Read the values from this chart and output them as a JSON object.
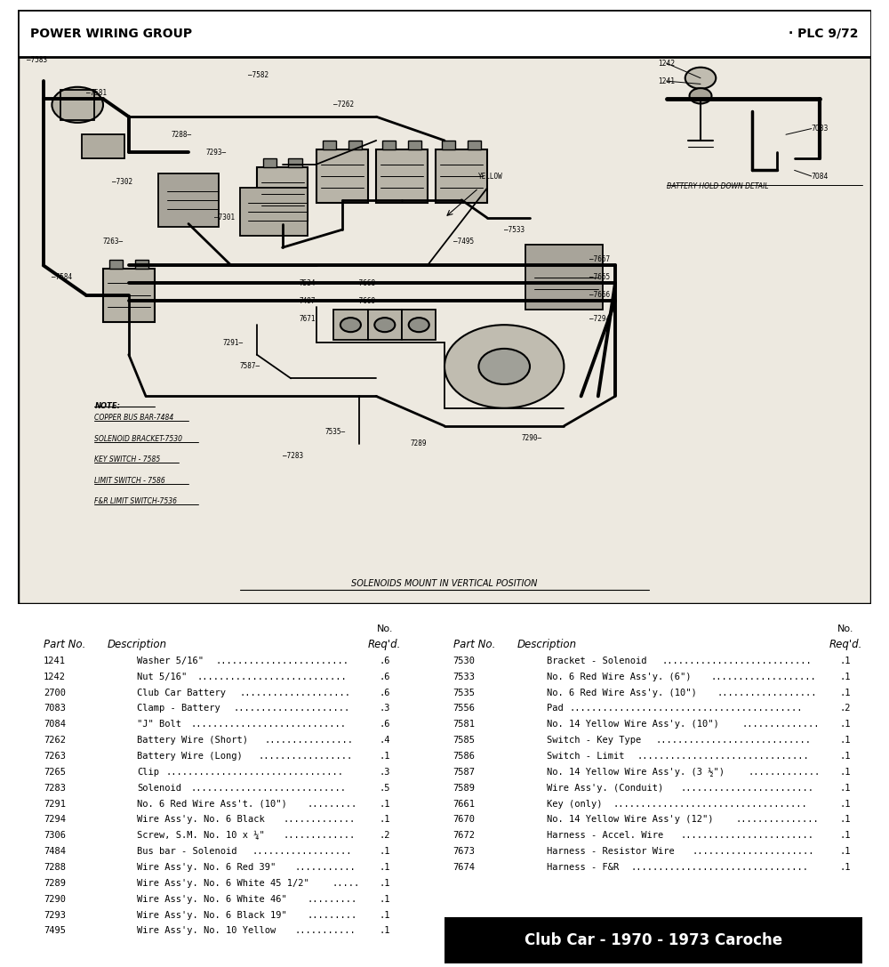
{
  "title_left": "POWER WIRING GROUP",
  "title_right": "· PLC 9/72",
  "diagram_note_title": "NOTE:",
  "diagram_note_lines": [
    "COPPER BUS BAR-7484",
    "SOLENOID BRACKET-7530",
    "KEY SWITCH - 7585",
    "LIMIT SWITCH - 7586",
    "F&R LIMIT SWITCH-7536"
  ],
  "diagram_bottom_note": "SOLENOIDS MOUNT IN VERTICAL POSITION",
  "battery_hold_down": "BATTERY HOLD DOWN DETAIL",
  "yellow_label": "YELLOW",
  "footer_title": "Club Car - 1970 - 1973 Caroche",
  "bg_color": "#ffffff",
  "diagram_bg": "#ede9e0",
  "parts_left": [
    [
      "1241",
      "Washer 5/16\"",
      ".6"
    ],
    [
      "1242",
      "Nut 5/16\"",
      ".6"
    ],
    [
      "2700",
      "Club Car Battery",
      ".6"
    ],
    [
      "7083",
      "Clamp - Battery",
      ".3"
    ],
    [
      "7084",
      "\"J\" Bolt",
      ".6"
    ],
    [
      "7262",
      "Battery Wire (Short)",
      ".4"
    ],
    [
      "7263",
      "Battery Wire (Long)",
      ".1"
    ],
    [
      "7265",
      "Clip",
      ".3"
    ],
    [
      "7283",
      "Solenoid",
      ".5"
    ],
    [
      "7291",
      "No. 6 Red Wire Ass't. (10\")",
      ".1"
    ],
    [
      "7294",
      "Wire Ass'y. No. 6 Black",
      ".1"
    ],
    [
      "7306",
      "Screw, S.M. No. 10 x ¼\"",
      ".2"
    ],
    [
      "7484",
      "Bus bar - Solenoid",
      ".1"
    ],
    [
      "7288",
      "Wire Ass'y. No. 6 Red 39\"",
      ".1"
    ],
    [
      "7289",
      "Wire Ass'y. No. 6 White 45 1/2\"",
      ".1"
    ],
    [
      "7290",
      "Wire Ass'y. No. 6 White 46\"",
      ".1"
    ],
    [
      "7293",
      "Wire Ass'y. No. 6 Black 19\"",
      ".1"
    ],
    [
      "7495",
      "Wire Ass'y. No. 10 Yellow",
      ".1"
    ]
  ],
  "parts_right": [
    [
      "7530",
      "Bracket - Solenoid",
      ".1"
    ],
    [
      "7533",
      "No. 6 Red Wire Ass'y. (6\")",
      ".1"
    ],
    [
      "7535",
      "No. 6 Red Wire Ass'y. (10\")",
      ".1"
    ],
    [
      "7556",
      "Pad",
      ".2"
    ],
    [
      "7581",
      "No. 14 Yellow Wire Ass'y. (10\")",
      ".1"
    ],
    [
      "7585",
      "Switch - Key Type",
      ".1"
    ],
    [
      "7586",
      "Switch - Limit",
      ".1"
    ],
    [
      "7587",
      "No. 14 Yellow Wire Ass'y. (3 ½\")",
      ".1"
    ],
    [
      "7589",
      "Wire Ass'y. (Conduit)",
      ".1"
    ],
    [
      "7661",
      "Key (only)",
      ".1"
    ],
    [
      "7670",
      "No. 14 Yellow Wire Ass'y (12\")",
      ".1"
    ],
    [
      "7672",
      "Harness - Accel. Wire",
      ".1"
    ],
    [
      "7673",
      "Harness - Resistor Wire",
      ".1"
    ],
    [
      "7674",
      "Harness - F&R",
      ".1"
    ]
  ]
}
